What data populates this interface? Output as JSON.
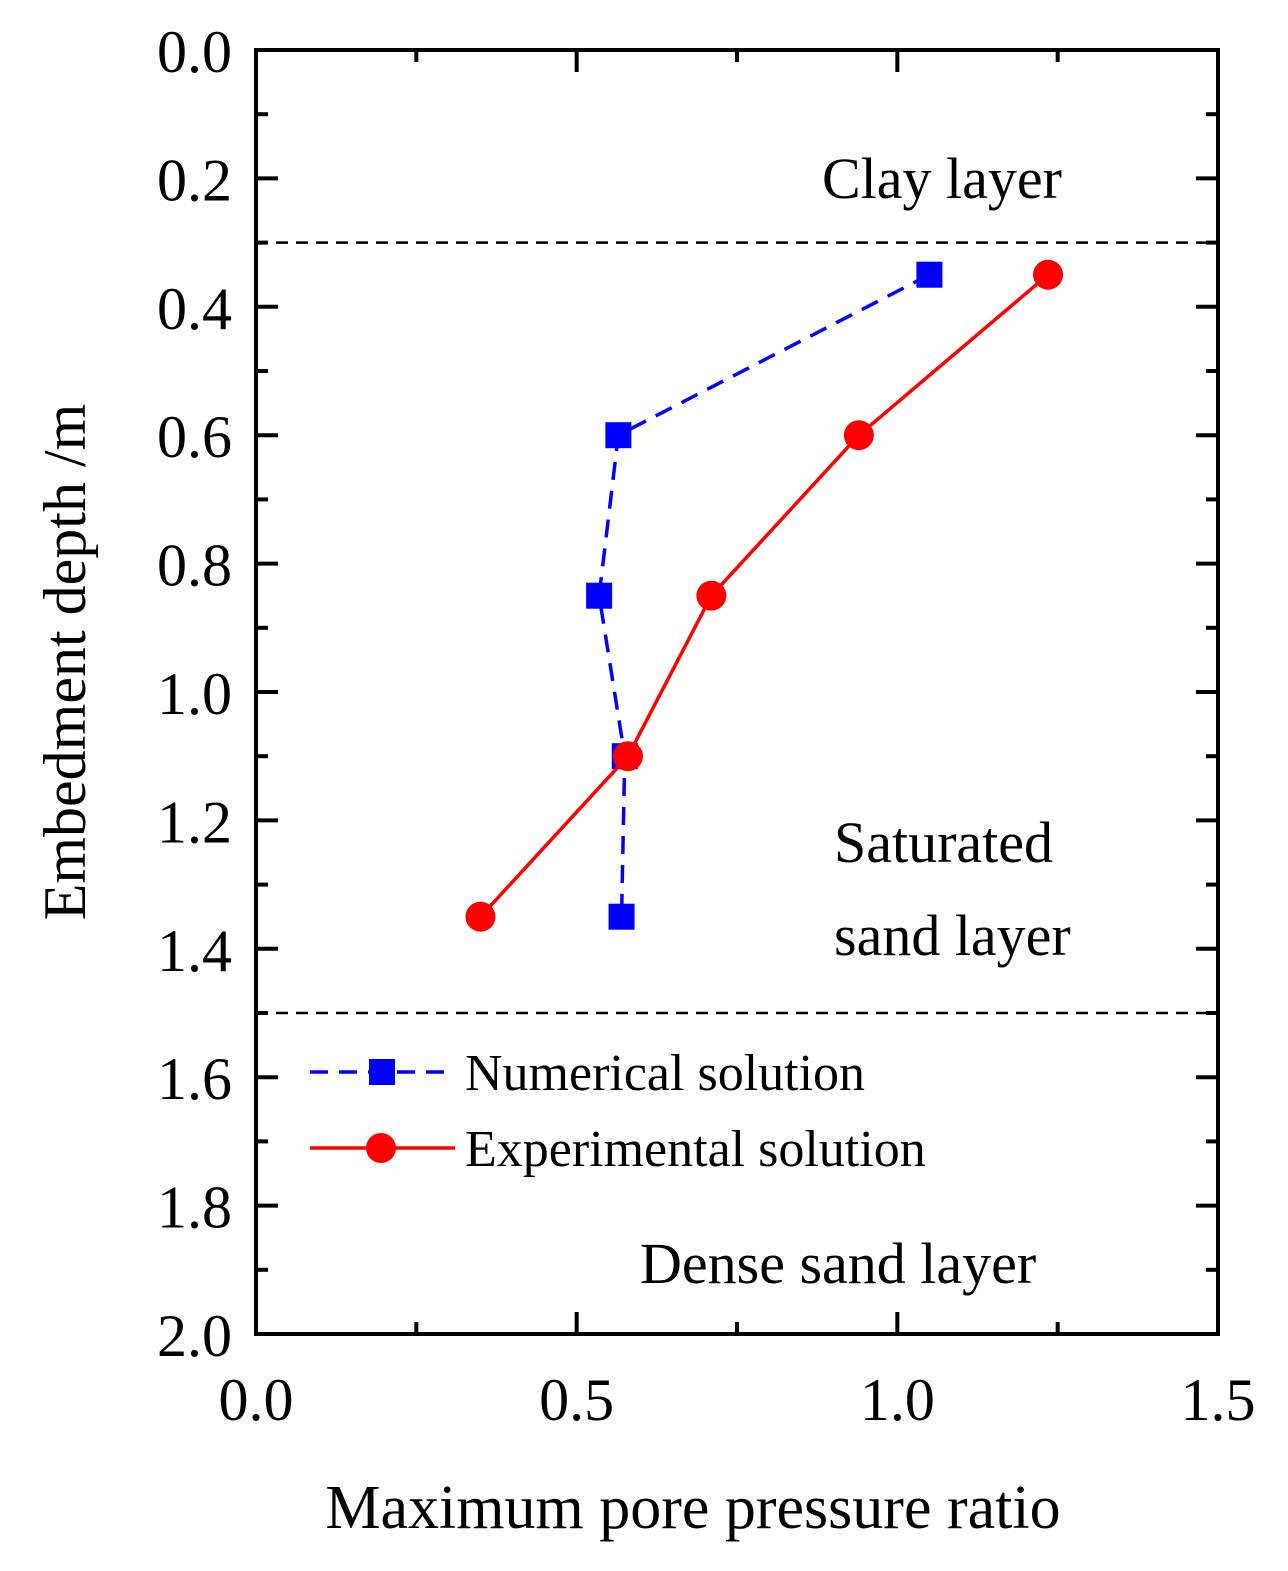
{
  "chart_data": {
    "type": "line",
    "xlabel": "Maximum pore pressure ratio",
    "ylabel": "Embedment depth /m",
    "xlim": [
      0.0,
      1.5
    ],
    "ylim": [
      0.0,
      2.0
    ],
    "y_inverted": true,
    "x_ticks": [
      "0.0",
      "0.5",
      "1.0",
      "1.5"
    ],
    "y_ticks": [
      "0.0",
      "0.2",
      "0.4",
      "0.6",
      "0.8",
      "1.0",
      "1.2",
      "1.4",
      "1.6",
      "1.8",
      "2.0"
    ],
    "x_tick_values": [
      0.0,
      0.5,
      1.0,
      1.5
    ],
    "y_tick_values": [
      0.0,
      0.2,
      0.4,
      0.6,
      0.8,
      1.0,
      1.2,
      1.4,
      1.6,
      1.8,
      2.0
    ],
    "series": [
      {
        "name": "Numerical solution",
        "color": "#0000ff",
        "marker": "square",
        "line_style": "dashed",
        "x": [
          1.05,
          0.565,
          0.535,
          0.575,
          0.57
        ],
        "y": [
          0.35,
          0.6,
          0.85,
          1.1,
          1.35
        ]
      },
      {
        "name": "Experimental solution",
        "color": "#ff0000",
        "marker": "circle",
        "line_style": "solid",
        "x": [
          1.235,
          0.94,
          0.71,
          0.58,
          0.35
        ],
        "y": [
          0.35,
          0.6,
          0.85,
          1.1,
          1.35
        ]
      }
    ],
    "boundaries": [
      0.3,
      1.5
    ],
    "annotations": [
      {
        "text": "Clay layer"
      },
      {
        "text": "Saturated"
      },
      {
        "text": "sand layer"
      },
      {
        "text": "Dense sand layer"
      }
    ],
    "legend": {
      "position": "lower-left",
      "entries": [
        "Numerical solution",
        "Experimental solution"
      ]
    }
  }
}
